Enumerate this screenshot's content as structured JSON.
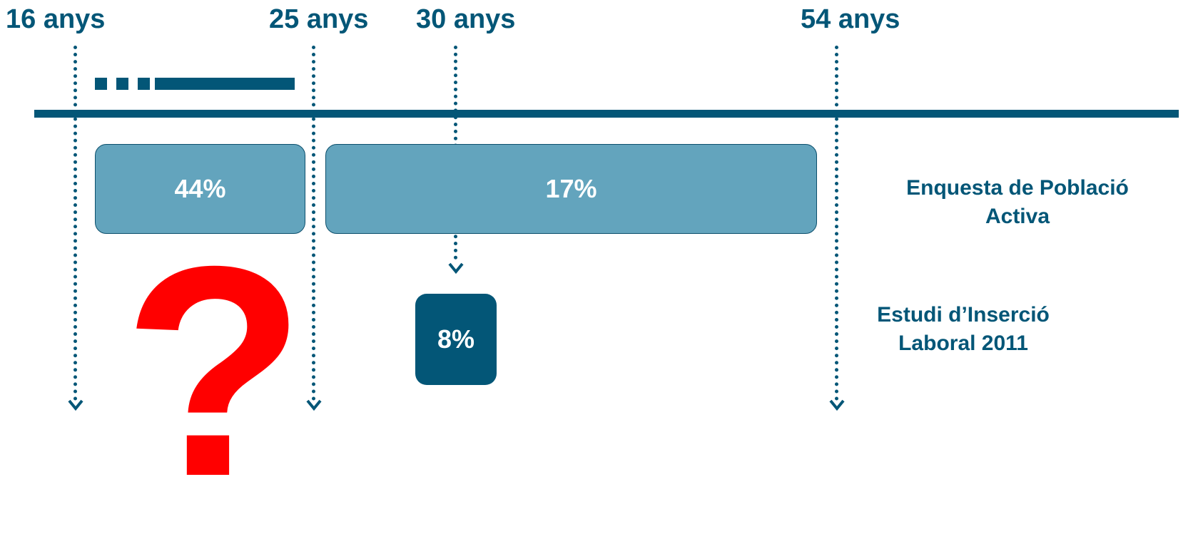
{
  "ages": {
    "a16": "16 anys",
    "a25": "25 anys",
    "a30": "30 anys",
    "a54": "54 anys"
  },
  "bars": {
    "young": "44%",
    "adult": "17%",
    "insercio": "8%"
  },
  "sources": {
    "epa_line1": "Enquesta de Població",
    "epa_line2": "Activa",
    "eil_line1": "Estudi d’Inserció",
    "eil_line2": "Laboral 2011"
  },
  "question_mark": "?",
  "colors": {
    "dark_teal": "#035677",
    "light_teal": "#63a4bd",
    "question_red": "#ff0000"
  }
}
